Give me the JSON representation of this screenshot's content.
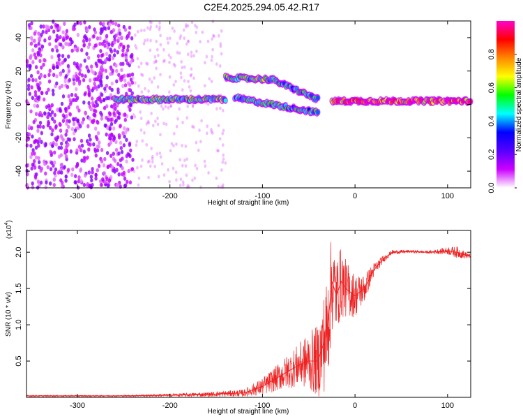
{
  "title": "C2E4.2025.294.05.42.R17",
  "chart_data": [
    {
      "type": "heatmap",
      "xlabel": "Height of straight line (km)",
      "ylabel": "Frequency (Hz)",
      "xlim": [
        -355,
        125
      ],
      "ylim": [
        -50,
        50
      ],
      "xticks": [
        -300,
        -200,
        -100,
        0,
        100
      ],
      "xtick_labels": [
        "-300",
        "-200",
        "-100",
        "0",
        "100"
      ],
      "yticks": [
        -40,
        -20,
        0,
        20,
        40
      ],
      "ytick_labels": [
        "-40",
        "-20",
        "0",
        "20",
        "40"
      ],
      "colorbar": {
        "label": "Normalized spectral amplitude",
        "ticks": [
          0.0,
          0.2,
          0.4,
          0.6,
          0.8
        ],
        "tick_labels": [
          "0.0",
          "0.2",
          "0.4",
          "0.6",
          "0.8"
        ],
        "range": [
          0,
          1
        ],
        "colormap": [
          "#ffffff",
          "#cc00ff",
          "#5500ff",
          "#0000ff",
          "#00ffff",
          "#00ff00",
          "#ffff00",
          "#ff8800",
          "#ff0000",
          "#ff00cc"
        ]
      },
      "features": [
        {
          "kind": "noise-band",
          "x": [
            -355,
            -240
          ],
          "y": [
            -50,
            50
          ],
          "amplitude": 0.15
        },
        {
          "kind": "ridge",
          "x": [
            -260,
            -140
          ],
          "y": [
            3,
            3
          ],
          "amplitude": 0.5
        },
        {
          "kind": "ridge",
          "x": [
            -140,
            -90
          ],
          "y": [
            16,
            15
          ],
          "amplitude": 0.5
        },
        {
          "kind": "ridge",
          "x": [
            -90,
            -40
          ],
          "y": [
            15,
            3
          ],
          "amplitude": 0.45
        },
        {
          "kind": "ridge",
          "x": [
            -130,
            -40
          ],
          "y": [
            4,
            -5
          ],
          "amplitude": 0.45
        },
        {
          "kind": "ridge",
          "x": [
            -25,
            125
          ],
          "y": [
            2,
            2
          ],
          "amplitude": 0.85
        }
      ]
    },
    {
      "type": "line",
      "xlabel": "Height of straight line (km)",
      "ylabel": "SNR (10 * v/v)",
      "multiplier_label": "(x10",
      "multiplier_exp": "4",
      "multiplier_close": ")",
      "xlim": [
        -355,
        125
      ],
      "ylim": [
        0,
        2.3
      ],
      "xticks": [
        -300,
        -200,
        -100,
        0,
        100
      ],
      "xtick_labels": [
        "-300",
        "-200",
        "-100",
        "0",
        "100"
      ],
      "yticks": [
        0.5,
        1.0,
        1.5,
        2.0
      ],
      "ytick_labels": [
        "0.5",
        "1.0",
        "1.5",
        "2.0"
      ],
      "color": "#ee2222",
      "x": [
        -355,
        -300,
        -250,
        -200,
        -160,
        -120,
        -100,
        -80,
        -60,
        -50,
        -40,
        -30,
        -25,
        -20,
        -15,
        -10,
        0,
        10,
        20,
        30,
        40,
        60,
        80,
        100,
        110,
        125
      ],
      "y": [
        0.02,
        0.02,
        0.02,
        0.03,
        0.04,
        0.06,
        0.15,
        0.3,
        0.45,
        0.5,
        0.5,
        0.9,
        1.6,
        1.4,
        1.6,
        1.5,
        1.4,
        1.5,
        1.75,
        1.9,
        2.0,
        2.01,
        2.0,
        2.02,
        2.0,
        1.94
      ],
      "envelope": [
        0.01,
        0.01,
        0.01,
        0.02,
        0.03,
        0.05,
        0.12,
        0.2,
        0.3,
        0.4,
        0.5,
        0.8,
        0.7,
        0.5,
        0.5,
        0.4,
        0.3,
        0.2,
        0.1,
        0.05,
        0.03,
        0.02,
        0.02,
        0.05,
        0.08,
        0.03
      ]
    }
  ]
}
